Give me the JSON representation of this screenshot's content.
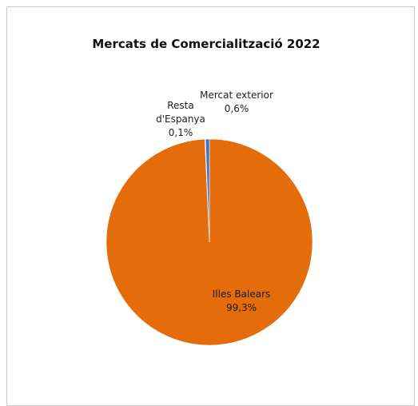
{
  "chart_data": {
    "type": "pie",
    "title": "Mercats de Comercialització 2022",
    "slices": [
      {
        "label": "Illes Balears",
        "label_lines": [
          "Illes Balears"
        ],
        "value": 99.3,
        "value_text": "99,3%",
        "color": "#e46c0a"
      },
      {
        "label": "Resta d'Espanya",
        "label_lines": [
          "Resta",
          "d'Espanya"
        ],
        "value": 0.1,
        "value_text": "0,1%",
        "color": "#a5a5a5"
      },
      {
        "label": "Mercat exterior",
        "label_lines": [
          "Mercat exterior"
        ],
        "value": 0.6,
        "value_text": "0,6%",
        "color": "#4472c4"
      }
    ]
  }
}
